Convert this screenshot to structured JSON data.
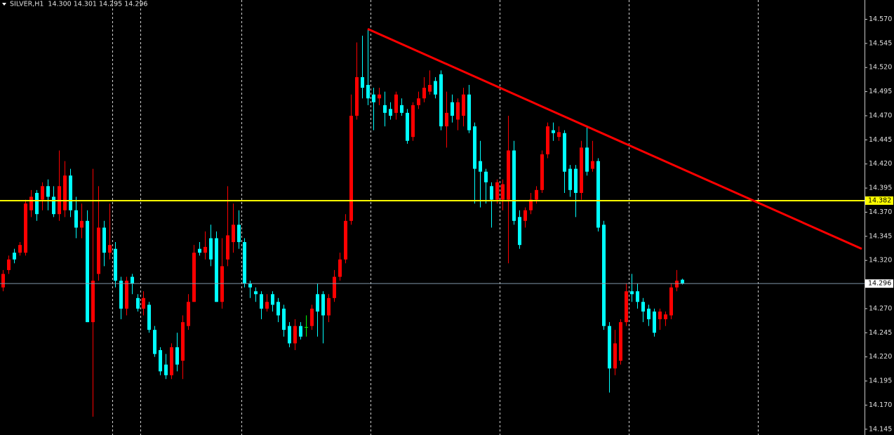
{
  "chart_data": {
    "type": "candlestick",
    "header": "SILVER,H1  14.300 14.301 14.295 14.296",
    "up_color": "#ff0000",
    "down_color": "#00ffff",
    "doji_color": "#00ff00",
    "open": [
      14.292,
      14.31,
      14.328,
      14.328,
      14.328,
      14.372,
      14.39,
      14.383,
      14.397,
      14.386,
      14.368,
      14.372,
      14.408,
      14.372,
      14.354,
      14.361,
      14.256,
      14.306,
      14.354,
      14.328,
      14.332,
      14.299,
      14.27,
      14.303,
      14.281,
      14.27,
      14.274,
      14.248,
      14.227,
      14.212,
      14.201,
      14.23,
      14.216,
      14.252,
      14.277,
      14.332,
      14.328,
      14.343,
      14.343,
      14.277,
      14.321,
      14.339,
      14.357,
      14.339,
      14.296,
      14.288,
      14.285,
      14.27,
      14.285,
      14.277,
      14.27,
      14.252,
      14.234,
      14.252,
      14.251,
      14.252,
      14.285,
      14.285,
      14.263,
      14.281,
      14.303,
      14.321,
      14.361,
      14.47,
      14.51,
      14.502,
      14.492,
      14.488,
      14.481,
      14.477,
      14.473,
      14.481,
      14.473,
      14.448,
      14.481,
      14.488,
      14.495,
      14.506,
      14.513,
      14.459,
      14.484,
      14.466,
      14.47,
      14.492,
      14.459,
      14.423,
      14.412,
      14.397,
      14.383,
      14.383,
      14.383,
      14.434,
      14.365,
      14.361,
      14.372,
      14.383,
      14.393,
      14.43,
      14.455,
      14.448,
      14.452,
      14.415,
      14.415,
      14.39,
      14.437,
      14.415,
      14.423,
      14.357,
      14.252,
      14.208,
      14.216,
      14.256,
      14.288,
      14.288,
      14.277,
      14.27,
      14.267,
      14.259,
      14.259,
      14.263,
      14.292,
      14.3
    ],
    "high": [
      14.31,
      14.325,
      14.332,
      14.339,
      14.383,
      14.393,
      14.393,
      14.401,
      14.404,
      14.397,
      14.434,
      14.423,
      14.415,
      14.386,
      14.379,
      14.372,
      14.415,
      14.397,
      14.361,
      14.379,
      14.339,
      14.303,
      14.303,
      14.306,
      14.285,
      14.288,
      14.277,
      14.252,
      14.23,
      14.223,
      14.234,
      14.245,
      14.263,
      14.285,
      14.336,
      14.339,
      14.35,
      14.357,
      14.35,
      14.343,
      14.397,
      14.379,
      14.372,
      14.343,
      14.299,
      14.292,
      14.288,
      14.285,
      14.288,
      14.281,
      14.274,
      14.256,
      14.259,
      14.256,
      14.263,
      14.274,
      14.296,
      14.288,
      14.285,
      14.31,
      14.328,
      14.368,
      14.492,
      14.546,
      14.553,
      14.56,
      14.499,
      14.499,
      14.495,
      14.484,
      14.495,
      14.488,
      14.477,
      14.484,
      14.495,
      14.51,
      14.517,
      14.51,
      14.517,
      14.495,
      14.492,
      14.488,
      14.499,
      14.502,
      14.463,
      14.444,
      14.415,
      14.401,
      14.404,
      14.404,
      14.47,
      14.444,
      14.372,
      14.375,
      14.39,
      14.397,
      14.434,
      14.463,
      14.463,
      14.459,
      14.455,
      14.419,
      14.419,
      14.444,
      14.459,
      14.444,
      14.426,
      14.361,
      14.256,
      14.248,
      14.259,
      14.296,
      14.306,
      14.296,
      14.281,
      14.274,
      14.27,
      14.27,
      14.267,
      14.296,
      14.31,
      14.301
    ],
    "low": [
      14.288,
      14.306,
      14.317,
      14.325,
      14.325,
      14.365,
      14.361,
      14.372,
      14.372,
      14.365,
      14.361,
      14.365,
      14.365,
      14.343,
      14.343,
      14.256,
      14.158,
      14.299,
      14.314,
      14.321,
      14.292,
      14.259,
      14.263,
      14.285,
      14.267,
      14.263,
      14.245,
      14.22,
      14.201,
      14.197,
      14.197,
      14.205,
      14.197,
      14.248,
      14.277,
      14.325,
      14.321,
      14.314,
      14.277,
      14.27,
      14.314,
      14.328,
      14.332,
      14.292,
      14.281,
      14.277,
      14.259,
      14.267,
      14.267,
      14.256,
      14.241,
      14.23,
      14.227,
      14.238,
      14.241,
      14.248,
      14.241,
      14.234,
      14.256,
      14.277,
      14.299,
      14.317,
      14.357,
      14.466,
      14.488,
      14.481,
      14.455,
      14.481,
      14.459,
      14.466,
      14.466,
      14.47,
      14.441,
      14.444,
      14.477,
      14.484,
      14.492,
      14.488,
      14.455,
      14.437,
      14.463,
      14.455,
      14.459,
      14.452,
      14.379,
      14.375,
      14.379,
      14.354,
      14.379,
      14.372,
      14.317,
      14.357,
      14.332,
      14.354,
      14.368,
      14.379,
      14.39,
      14.426,
      14.444,
      14.444,
      14.39,
      14.386,
      14.365,
      14.383,
      14.408,
      14.412,
      14.35,
      14.248,
      14.183,
      14.201,
      14.212,
      14.252,
      14.277,
      14.27,
      14.256,
      14.252,
      14.241,
      14.248,
      14.252,
      14.259,
      14.288,
      14.295
    ],
    "close": [
      14.306,
      14.321,
      14.321,
      14.336,
      14.379,
      14.386,
      14.368,
      14.397,
      14.386,
      14.368,
      14.397,
      14.408,
      14.372,
      14.354,
      14.361,
      14.256,
      14.299,
      14.354,
      14.328,
      14.336,
      14.299,
      14.27,
      14.299,
      14.296,
      14.27,
      14.281,
      14.248,
      14.223,
      14.205,
      14.201,
      14.23,
      14.212,
      14.256,
      14.277,
      14.328,
      14.328,
      14.334,
      14.321,
      14.277,
      14.314,
      14.346,
      14.357,
      14.339,
      14.296,
      14.292,
      14.285,
      14.27,
      14.277,
      14.274,
      14.263,
      14.248,
      14.234,
      14.252,
      14.241,
      14.251,
      14.27,
      14.267,
      14.263,
      14.281,
      14.303,
      14.321,
      14.361,
      14.47,
      14.51,
      14.499,
      14.488,
      14.484,
      14.492,
      14.473,
      14.47,
      14.492,
      14.473,
      14.444,
      14.481,
      14.488,
      14.499,
      14.502,
      14.492,
      14.459,
      14.473,
      14.47,
      14.484,
      14.492,
      14.455,
      14.415,
      14.412,
      14.401,
      14.383,
      14.401,
      14.399,
      14.434,
      14.361,
      14.336,
      14.372,
      14.383,
      14.393,
      14.43,
      14.459,
      14.452,
      14.453,
      14.412,
      14.393,
      14.39,
      14.437,
      14.412,
      14.423,
      14.354,
      14.252,
      14.208,
      14.234,
      14.256,
      14.288,
      14.285,
      14.277,
      14.267,
      14.259,
      14.245,
      14.267,
      14.264,
      14.292,
      14.299,
      14.296
    ],
    "xlim": [
      -0.5,
      153.5
    ],
    "ylim": [
      14.139,
      14.59
    ],
    "yticks": [
      {
        "value": 14.57,
        "label": "14.570"
      },
      14.545,
      {
        "value": 14.52,
        "label": "14.520"
      },
      14.495,
      {
        "value": 14.47,
        "label": "14.470"
      },
      14.445,
      {
        "value": 14.42,
        "label": "14.420"
      },
      14.395,
      {
        "value": 14.37,
        "label": "14.370"
      },
      14.345,
      {
        "value": 14.32,
        "label": "14.320"
      },
      14.295,
      {
        "value": 14.27,
        "label": "14.270"
      },
      14.245,
      {
        "value": 14.22,
        "label": "14.220"
      },
      14.195,
      {
        "value": 14.17,
        "label": "14.170"
      },
      14.145
    ],
    "period_separators": [
      19.5,
      24.5,
      42.5,
      65.5,
      88.5,
      111.5,
      134.5
    ],
    "levels": [
      {
        "value": 14.382,
        "color": "#ffff00"
      }
    ],
    "current_price": {
      "value": 14.296,
      "color": "#7f95a8"
    },
    "trendline": {
      "color": "#ff0000",
      "start": {
        "bar": 65,
        "price": 14.56
      },
      "end": {
        "bar": 153,
        "price": 14.332
      }
    }
  }
}
